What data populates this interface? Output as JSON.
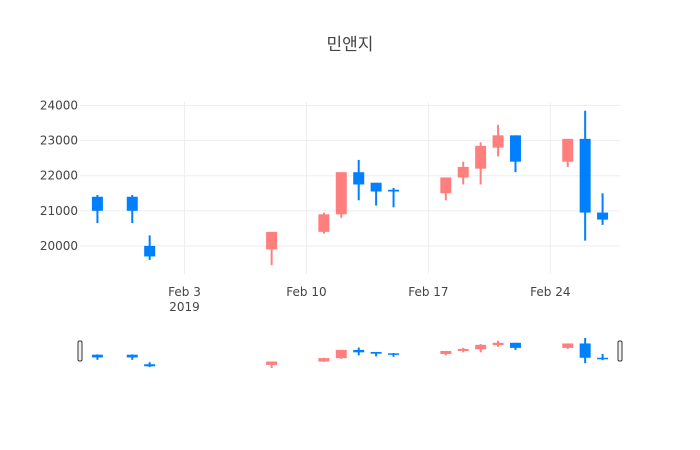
{
  "chart_data": {
    "type": "candlestick",
    "title": "민앤지",
    "increasing_color": "#FF7F7F",
    "decreasing_color": "#0080FF",
    "x_start": "2019-01-28",
    "x_end": "2019-02-28",
    "ylim": [
      19200,
      24100
    ],
    "y_ticks": [
      20000,
      21000,
      22000,
      23000,
      24000
    ],
    "y_tick_labels": [
      "20000",
      "21000",
      "22000",
      "23000",
      "24000"
    ],
    "x_ticks": [
      "2019-02-03",
      "2019-02-10",
      "2019-02-17",
      "2019-02-24"
    ],
    "x_tick_labels": [
      "Feb 3",
      "Feb 10",
      "Feb 17",
      "Feb 24"
    ],
    "x_year_label": "2019",
    "grid": true,
    "rangeslider": true,
    "candles": [
      {
        "date": "2019-01-29",
        "open": 21400,
        "high": 21450,
        "low": 20650,
        "close": 21000
      },
      {
        "date": "2019-01-31",
        "open": 21400,
        "high": 21450,
        "low": 20650,
        "close": 21000
      },
      {
        "date": "2019-02-01",
        "open": 20000,
        "high": 20300,
        "low": 19600,
        "close": 19700
      },
      {
        "date": "2019-02-08",
        "open": 19900,
        "high": 20400,
        "low": 19450,
        "close": 20400
      },
      {
        "date": "2019-02-11",
        "open": 20400,
        "high": 20950,
        "low": 20350,
        "close": 20900
      },
      {
        "date": "2019-02-12",
        "open": 20900,
        "high": 22100,
        "low": 20800,
        "close": 22100
      },
      {
        "date": "2019-02-13",
        "open": 22100,
        "high": 22450,
        "low": 21300,
        "close": 21750
      },
      {
        "date": "2019-02-14",
        "open": 21800,
        "high": 21800,
        "low": 21150,
        "close": 21550
      },
      {
        "date": "2019-02-15",
        "open": 21600,
        "high": 21650,
        "low": 21100,
        "close": 21550
      },
      {
        "date": "2019-02-18",
        "open": 21500,
        "high": 21950,
        "low": 21300,
        "close": 21950
      },
      {
        "date": "2019-02-19",
        "open": 21950,
        "high": 22400,
        "low": 21750,
        "close": 22250
      },
      {
        "date": "2019-02-20",
        "open": 22200,
        "high": 22950,
        "low": 21750,
        "close": 22850
      },
      {
        "date": "2019-02-21",
        "open": 22800,
        "high": 23450,
        "low": 22550,
        "close": 23150
      },
      {
        "date": "2019-02-22",
        "open": 23150,
        "high": 23150,
        "low": 22100,
        "close": 22400
      },
      {
        "date": "2019-02-25",
        "open": 22400,
        "high": 23050,
        "low": 22250,
        "close": 23050
      },
      {
        "date": "2019-02-26",
        "open": 23050,
        "high": 23850,
        "low": 20150,
        "close": 20950
      },
      {
        "date": "2019-02-27",
        "open": 20950,
        "high": 21500,
        "low": 20600,
        "close": 20750
      }
    ]
  }
}
